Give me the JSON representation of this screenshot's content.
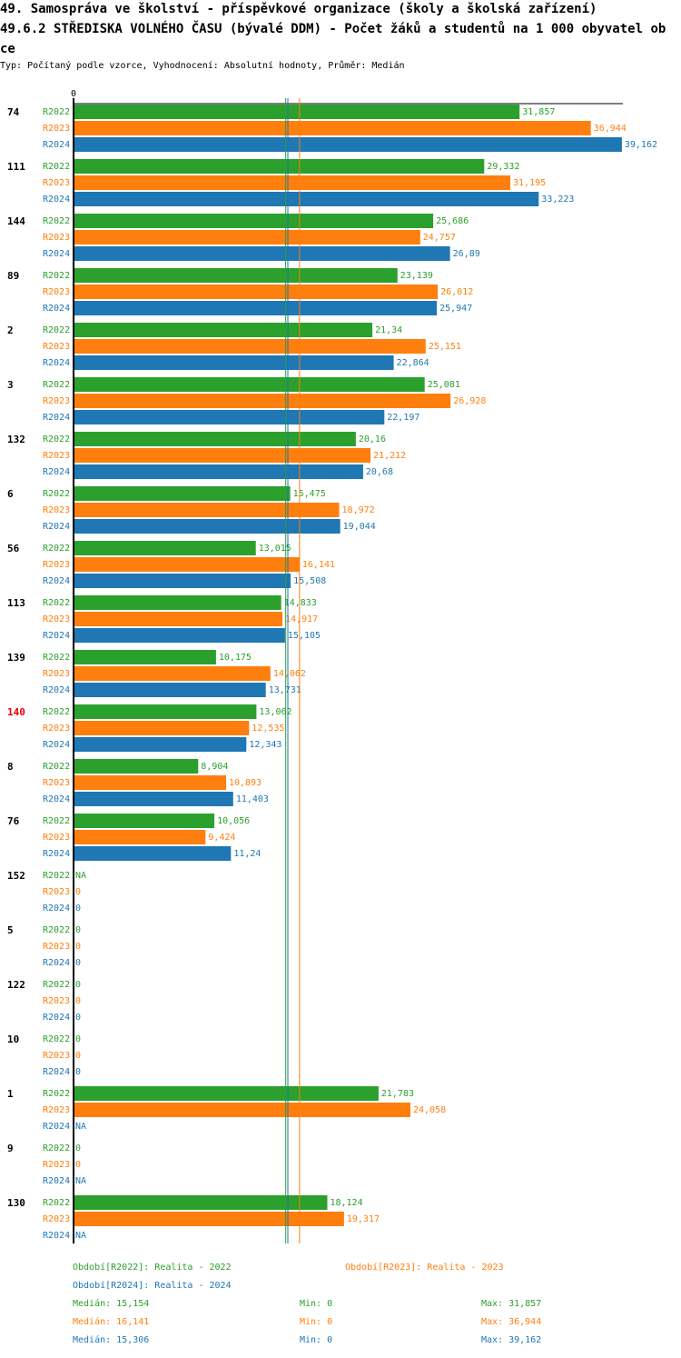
{
  "header": {
    "title1": "49. Samospráva ve školství - příspěvkové organizace (školy a školská zařízení)",
    "title2": "49.6.2 STŘEDISKA VOLNÉHO ČASU (bývalé DDM) - Počet žáků a studentů na 1 000 obyvatel obce",
    "subtitle": "Typ: Počítaný podle vzorce, Vyhodnocení: Absolutní hodnoty, Průměr: Medián"
  },
  "colors": {
    "R2022": "#2ca02c",
    "R2023": "#ff7f0e",
    "R2024": "#1f77b4",
    "highlight": "#e00000"
  },
  "chart_data": {
    "type": "bar",
    "orientation": "horizontal",
    "axis_zero_label": "0",
    "xlim": [
      0,
      39.162
    ],
    "highlight_category": "140",
    "series_names": [
      "R2022",
      "R2023",
      "R2024"
    ],
    "groups": [
      {
        "id": "74",
        "bars": [
          {
            "s": "R2022",
            "v": 31.857,
            "l": "31,857"
          },
          {
            "s": "R2023",
            "v": 36.944,
            "l": "36,944"
          },
          {
            "s": "R2024",
            "v": 39.162,
            "l": "39,162"
          }
        ]
      },
      {
        "id": "111",
        "bars": [
          {
            "s": "R2022",
            "v": 29.332,
            "l": "29,332"
          },
          {
            "s": "R2023",
            "v": 31.195,
            "l": "31,195"
          },
          {
            "s": "R2024",
            "v": 33.223,
            "l": "33,223"
          }
        ]
      },
      {
        "id": "144",
        "bars": [
          {
            "s": "R2022",
            "v": 25.686,
            "l": "25,686"
          },
          {
            "s": "R2023",
            "v": 24.757,
            "l": "24,757"
          },
          {
            "s": "R2024",
            "v": 26.89,
            "l": "26,89"
          }
        ]
      },
      {
        "id": "89",
        "bars": [
          {
            "s": "R2022",
            "v": 23.139,
            "l": "23,139"
          },
          {
            "s": "R2023",
            "v": 26.012,
            "l": "26,012"
          },
          {
            "s": "R2024",
            "v": 25.947,
            "l": "25,947"
          }
        ]
      },
      {
        "id": "2",
        "bars": [
          {
            "s": "R2022",
            "v": 21.34,
            "l": "21,34"
          },
          {
            "s": "R2023",
            "v": 25.151,
            "l": "25,151"
          },
          {
            "s": "R2024",
            "v": 22.864,
            "l": "22,864"
          }
        ]
      },
      {
        "id": "3",
        "bars": [
          {
            "s": "R2022",
            "v": 25.081,
            "l": "25,081"
          },
          {
            "s": "R2023",
            "v": 26.928,
            "l": "26,928"
          },
          {
            "s": "R2024",
            "v": 22.197,
            "l": "22,197"
          }
        ]
      },
      {
        "id": "132",
        "bars": [
          {
            "s": "R2022",
            "v": 20.16,
            "l": "20,16"
          },
          {
            "s": "R2023",
            "v": 21.212,
            "l": "21,212"
          },
          {
            "s": "R2024",
            "v": 20.68,
            "l": "20,68"
          }
        ]
      },
      {
        "id": "6",
        "bars": [
          {
            "s": "R2022",
            "v": 15.475,
            "l": "15,475"
          },
          {
            "s": "R2023",
            "v": 18.972,
            "l": "18,972"
          },
          {
            "s": "R2024",
            "v": 19.044,
            "l": "19,044"
          }
        ]
      },
      {
        "id": "56",
        "bars": [
          {
            "s": "R2022",
            "v": 13.015,
            "l": "13,015"
          },
          {
            "s": "R2023",
            "v": 16.141,
            "l": "16,141"
          },
          {
            "s": "R2024",
            "v": 15.508,
            "l": "15,508"
          }
        ]
      },
      {
        "id": "113",
        "bars": [
          {
            "s": "R2022",
            "v": 14.833,
            "l": "14,833"
          },
          {
            "s": "R2023",
            "v": 14.917,
            "l": "14,917"
          },
          {
            "s": "R2024",
            "v": 15.105,
            "l": "15,105"
          }
        ]
      },
      {
        "id": "139",
        "bars": [
          {
            "s": "R2022",
            "v": 10.175,
            "l": "10,175"
          },
          {
            "s": "R2023",
            "v": 14.062,
            "l": "14,062"
          },
          {
            "s": "R2024",
            "v": 13.731,
            "l": "13,731"
          }
        ]
      },
      {
        "id": "140",
        "bars": [
          {
            "s": "R2022",
            "v": 13.062,
            "l": "13,062"
          },
          {
            "s": "R2023",
            "v": 12.535,
            "l": "12,535"
          },
          {
            "s": "R2024",
            "v": 12.343,
            "l": "12,343"
          }
        ]
      },
      {
        "id": "8",
        "bars": [
          {
            "s": "R2022",
            "v": 8.904,
            "l": "8,904"
          },
          {
            "s": "R2023",
            "v": 10.893,
            "l": "10,893"
          },
          {
            "s": "R2024",
            "v": 11.403,
            "l": "11,403"
          }
        ]
      },
      {
        "id": "76",
        "bars": [
          {
            "s": "R2022",
            "v": 10.056,
            "l": "10,056"
          },
          {
            "s": "R2023",
            "v": 9.424,
            "l": "9,424"
          },
          {
            "s": "R2024",
            "v": 11.24,
            "l": "11,24"
          }
        ]
      },
      {
        "id": "152",
        "bars": [
          {
            "s": "R2022",
            "v": null,
            "l": "NA"
          },
          {
            "s": "R2023",
            "v": 0,
            "l": "0"
          },
          {
            "s": "R2024",
            "v": 0,
            "l": "0"
          }
        ]
      },
      {
        "id": "5",
        "bars": [
          {
            "s": "R2022",
            "v": 0,
            "l": "0"
          },
          {
            "s": "R2023",
            "v": 0,
            "l": "0"
          },
          {
            "s": "R2024",
            "v": 0,
            "l": "0"
          }
        ]
      },
      {
        "id": "122",
        "bars": [
          {
            "s": "R2022",
            "v": 0,
            "l": "0"
          },
          {
            "s": "R2023",
            "v": 0,
            "l": "0"
          },
          {
            "s": "R2024",
            "v": 0,
            "l": "0"
          }
        ]
      },
      {
        "id": "10",
        "bars": [
          {
            "s": "R2022",
            "v": 0,
            "l": "0"
          },
          {
            "s": "R2023",
            "v": 0,
            "l": "0"
          },
          {
            "s": "R2024",
            "v": 0,
            "l": "0"
          }
        ]
      },
      {
        "id": "1",
        "bars": [
          {
            "s": "R2022",
            "v": 21.783,
            "l": "21,783"
          },
          {
            "s": "R2023",
            "v": 24.058,
            "l": "24,058"
          },
          {
            "s": "R2024",
            "v": null,
            "l": "NA"
          }
        ]
      },
      {
        "id": "9",
        "bars": [
          {
            "s": "R2022",
            "v": 0,
            "l": "0"
          },
          {
            "s": "R2023",
            "v": 0,
            "l": "0"
          },
          {
            "s": "R2024",
            "v": null,
            "l": "NA"
          }
        ]
      },
      {
        "id": "130",
        "bars": [
          {
            "s": "R2022",
            "v": 18.124,
            "l": "18,124"
          },
          {
            "s": "R2023",
            "v": 19.317,
            "l": "19,317"
          },
          {
            "s": "R2024",
            "v": null,
            "l": "NA"
          }
        ]
      }
    ],
    "medians": {
      "R2022": 15.154,
      "R2023": 16.141,
      "R2024": 15.306
    }
  },
  "legend": {
    "periods": [
      {
        "series": "R2022",
        "text": "Období[R2022]: Realita - 2022"
      },
      {
        "series": "R2023",
        "text": "Období[R2023]: Realita - 2023"
      },
      {
        "series": "R2024",
        "text": "Období[R2024]: Realita - 2024"
      }
    ],
    "stats": [
      {
        "series": "R2022",
        "median": "Medián: 15,154",
        "min": "Min: 0",
        "max": "Max: 31,857"
      },
      {
        "series": "R2023",
        "median": "Medián: 16,141",
        "min": "Min: 0",
        "max": "Max: 36,944"
      },
      {
        "series": "R2024",
        "median": "Medián: 15,306",
        "min": "Min: 0",
        "max": "Max: 39,162"
      }
    ]
  }
}
